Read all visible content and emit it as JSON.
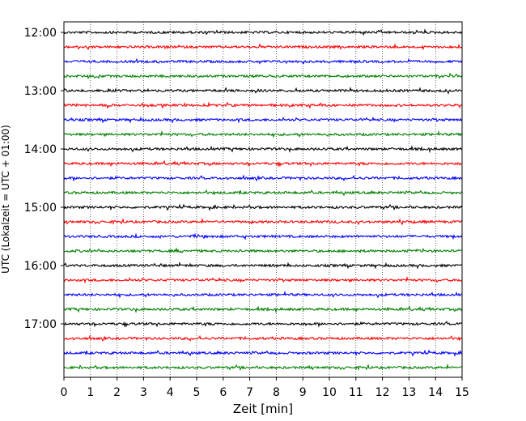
{
  "chart_data": {
    "type": "line",
    "title": "",
    "xlabel": "Zeit  [min]",
    "ylabel": "UTC (Lokalzeit = UTC + 01:00)",
    "xlim": [
      0,
      15
    ],
    "x_ticks": [
      0,
      1,
      2,
      3,
      4,
      5,
      6,
      7,
      8,
      9,
      10,
      11,
      12,
      13,
      14,
      15
    ],
    "y_tick_labels": [
      "12:00",
      "13:00",
      "14:00",
      "15:00",
      "16:00",
      "17:00"
    ],
    "grid": "vertical dotted lines at each minute",
    "trace_interval_min": 15,
    "trace_start": "12:00",
    "trace_count": 24,
    "trace_colors": [
      "#000000",
      "#ff0000",
      "#0000ff",
      "#008000"
    ],
    "traces": [
      {
        "start": "12:00",
        "color": "#000000"
      },
      {
        "start": "12:15",
        "color": "#ff0000"
      },
      {
        "start": "12:30",
        "color": "#0000ff"
      },
      {
        "start": "12:45",
        "color": "#008000"
      },
      {
        "start": "13:00",
        "color": "#000000"
      },
      {
        "start": "13:15",
        "color": "#ff0000"
      },
      {
        "start": "13:30",
        "color": "#0000ff"
      },
      {
        "start": "13:45",
        "color": "#008000"
      },
      {
        "start": "14:00",
        "color": "#000000"
      },
      {
        "start": "14:15",
        "color": "#ff0000"
      },
      {
        "start": "14:30",
        "color": "#0000ff"
      },
      {
        "start": "14:45",
        "color": "#008000"
      },
      {
        "start": "15:00",
        "color": "#000000"
      },
      {
        "start": "15:15",
        "color": "#ff0000"
      },
      {
        "start": "15:30",
        "color": "#0000ff"
      },
      {
        "start": "15:45",
        "color": "#008000"
      },
      {
        "start": "16:00",
        "color": "#000000"
      },
      {
        "start": "16:15",
        "color": "#ff0000"
      },
      {
        "start": "16:30",
        "color": "#0000ff"
      },
      {
        "start": "16:45",
        "color": "#008000"
      },
      {
        "start": "17:00",
        "color": "#000000"
      },
      {
        "start": "17:15",
        "color": "#ff0000"
      },
      {
        "start": "17:30",
        "color": "#0000ff"
      },
      {
        "start": "17:45",
        "color": "#008000"
      }
    ]
  }
}
